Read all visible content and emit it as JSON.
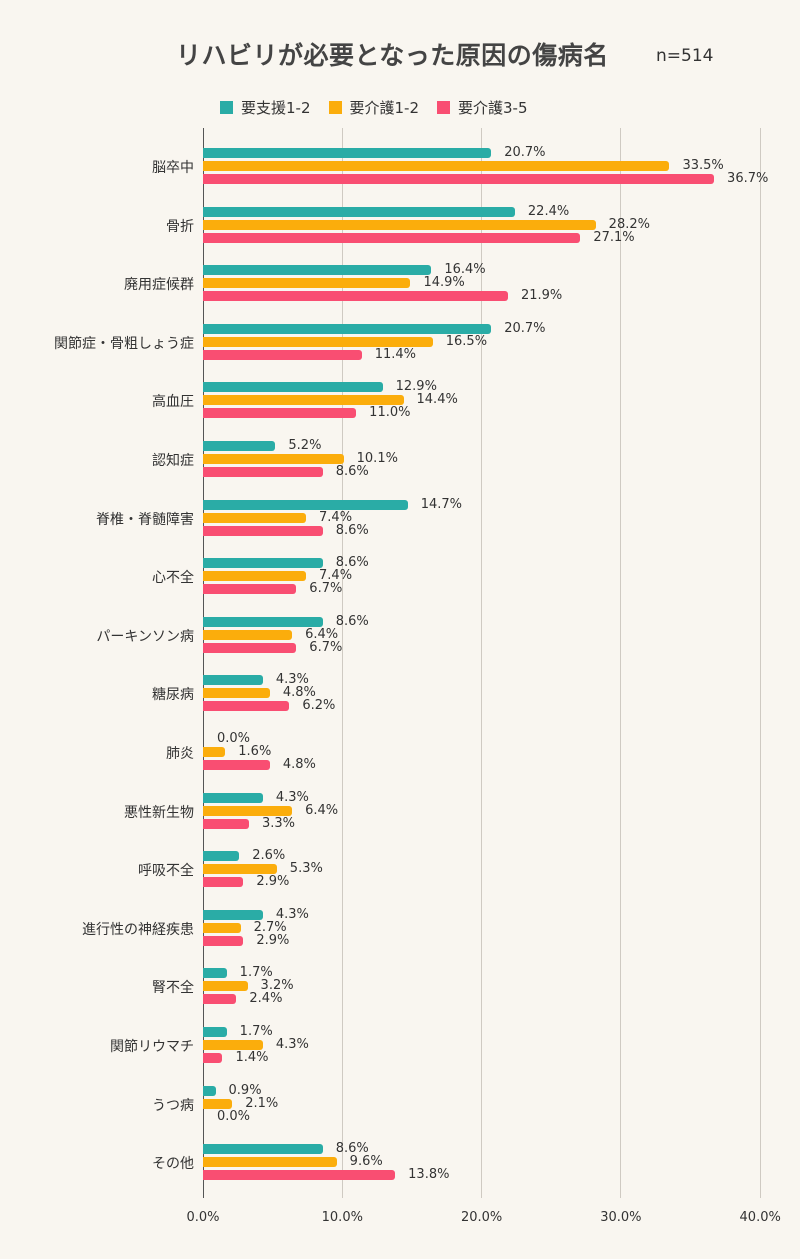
{
  "title": "リハビリが必要となった原因の傷病名",
  "sample_size": "n=514",
  "colors": {
    "youshien12": "#2aaca6",
    "youkaigo12": "#fbad0c",
    "youkaigo35": "#f94e72"
  },
  "legend": [
    {
      "label": "要支援1-2",
      "color": "#2aaca6"
    },
    {
      "label": "要介護1-2",
      "color": "#fbad0c"
    },
    {
      "label": "要介護3-5",
      "color": "#f94e72"
    }
  ],
  "x_ticks": [
    "0.0%",
    "10.0%",
    "20.0%",
    "30.0%",
    "40.0%"
  ],
  "chart_data": {
    "type": "bar",
    "orientation": "horizontal",
    "title": "リハビリが必要となった原因の傷病名",
    "subtitle": "n=514",
    "xlabel": "",
    "ylabel": "",
    "xlim": [
      0,
      40
    ],
    "grid": true,
    "legend_position": "top",
    "categories": [
      "脳卒中",
      "骨折",
      "廃用症候群",
      "関節症・骨粗しょう症",
      "高血圧",
      "認知症",
      "脊椎・脊髄障害",
      "心不全",
      "パーキンソン病",
      "糖尿病",
      "肺炎",
      "悪性新生物",
      "呼吸不全",
      "進行性の神経疾患",
      "腎不全",
      "関節リウマチ",
      "うつ病",
      "その他"
    ],
    "series": [
      {
        "name": "要支援1-2",
        "color": "#2aaca6",
        "values": [
          20.7,
          22.4,
          16.4,
          20.7,
          12.9,
          5.2,
          14.7,
          8.6,
          8.6,
          4.3,
          0.0,
          4.3,
          2.6,
          4.3,
          1.7,
          1.7,
          0.9,
          8.6
        ]
      },
      {
        "name": "要介護1-2",
        "color": "#fbad0c",
        "values": [
          33.5,
          28.2,
          14.9,
          16.5,
          14.4,
          10.1,
          7.4,
          7.4,
          6.4,
          4.8,
          1.6,
          6.4,
          5.3,
          2.7,
          3.2,
          4.3,
          2.1,
          9.6
        ]
      },
      {
        "name": "要介護3-5",
        "color": "#f94e72",
        "values": [
          36.7,
          27.1,
          21.9,
          11.4,
          11.0,
          8.6,
          8.6,
          6.7,
          6.7,
          6.2,
          4.8,
          3.3,
          2.9,
          2.9,
          2.4,
          1.4,
          0.0,
          13.8
        ]
      }
    ],
    "value_labels": [
      [
        "20.7%",
        "33.5%",
        "36.7%"
      ],
      [
        "22.4%",
        "28.2%",
        "27.1%"
      ],
      [
        "16.4%",
        "14.9%",
        "21.9%"
      ],
      [
        "20.7%",
        "16.5%",
        "11.4%"
      ],
      [
        "12.9%",
        "14.4%",
        "11.0%"
      ],
      [
        "5.2%",
        "10.1%",
        "8.6%"
      ],
      [
        "14.7%",
        "7.4%",
        "8.6%"
      ],
      [
        "8.6%",
        "7.4%",
        "6.7%"
      ],
      [
        "8.6%",
        "6.4%",
        "6.7%"
      ],
      [
        "4.3%",
        "4.8%",
        "6.2%"
      ],
      [
        "0.0%",
        "1.6%",
        "4.8%"
      ],
      [
        "4.3%",
        "6.4%",
        "3.3%"
      ],
      [
        "2.6%",
        "5.3%",
        "2.9%"
      ],
      [
        "4.3%",
        "2.7%",
        "2.9%"
      ],
      [
        "1.7%",
        "3.2%",
        "2.4%"
      ],
      [
        "1.7%",
        "4.3%",
        "1.4%"
      ],
      [
        "0.9%",
        "2.1%",
        "0.0%"
      ],
      [
        "8.6%",
        "9.6%",
        "13.8%"
      ]
    ]
  }
}
